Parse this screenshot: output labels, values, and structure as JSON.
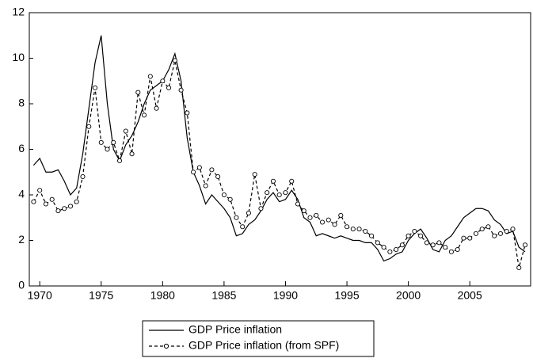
{
  "chart_data": {
    "type": "line",
    "x": [
      1969.5,
      1970,
      1970.5,
      1971,
      1971.5,
      1972,
      1972.5,
      1973,
      1973.5,
      1974,
      1974.5,
      1975,
      1975.5,
      1976,
      1976.5,
      1977,
      1977.5,
      1978,
      1978.5,
      1979,
      1979.5,
      1980,
      1980.5,
      1981,
      1981.5,
      1982,
      1982.5,
      1983,
      1983.5,
      1984,
      1984.5,
      1985,
      1985.5,
      1986,
      1986.5,
      1987,
      1987.5,
      1988,
      1988.5,
      1989,
      1989.5,
      1990,
      1990.5,
      1991,
      1991.5,
      1992,
      1992.5,
      1993,
      1993.5,
      1994,
      1994.5,
      1995,
      1995.5,
      1996,
      1996.5,
      1997,
      1997.5,
      1998,
      1998.5,
      1999,
      1999.5,
      2000,
      2000.5,
      2001,
      2001.5,
      2002,
      2002.5,
      2003,
      2003.5,
      2004,
      2004.5,
      2005,
      2005.5,
      2006,
      2006.5,
      2007,
      2007.5,
      2008,
      2008.5,
      2009,
      2009.5
    ],
    "series": [
      {
        "name": "GDP Price inflation",
        "color": "#000000",
        "dashed": false,
        "markers": false,
        "values": [
          5.3,
          5.6,
          5.0,
          5.0,
          5.1,
          4.6,
          4.0,
          4.3,
          5.8,
          7.8,
          9.8,
          11.0,
          8.0,
          6.0,
          5.5,
          6.2,
          6.6,
          7.2,
          8.0,
          8.6,
          8.8,
          9.0,
          9.5,
          10.2,
          9.0,
          6.5,
          5.0,
          4.4,
          3.6,
          4.0,
          3.7,
          3.4,
          3.0,
          2.2,
          2.3,
          2.7,
          2.9,
          3.3,
          3.8,
          4.1,
          3.7,
          3.8,
          4.2,
          3.8,
          3.0,
          2.8,
          2.2,
          2.3,
          2.2,
          2.1,
          2.2,
          2.1,
          2.0,
          2.0,
          1.9,
          1.9,
          1.6,
          1.1,
          1.2,
          1.4,
          1.5,
          2.0,
          2.3,
          2.5,
          2.1,
          1.6,
          1.5,
          2.0,
          2.2,
          2.6,
          3.0,
          3.2,
          3.4,
          3.4,
          3.3,
          2.9,
          2.7,
          2.3,
          2.4,
          1.7,
          1.5
        ]
      },
      {
        "name": "GDP Price inflation (from SPF)",
        "color": "#000000",
        "dashed": true,
        "markers": true,
        "values": [
          3.7,
          4.2,
          3.6,
          3.8,
          3.3,
          3.4,
          3.5,
          3.7,
          4.8,
          7.0,
          8.7,
          6.3,
          6.0,
          6.3,
          5.5,
          6.8,
          5.8,
          8.5,
          7.5,
          9.2,
          7.8,
          9.0,
          8.7,
          9.9,
          8.6,
          7.6,
          5.0,
          5.2,
          4.4,
          5.1,
          4.8,
          4.0,
          3.8,
          3.0,
          2.6,
          3.2,
          4.9,
          3.4,
          4.1,
          4.6,
          4.0,
          4.1,
          4.6,
          3.6,
          3.3,
          3.0,
          3.1,
          2.8,
          2.9,
          2.7,
          3.1,
          2.6,
          2.5,
          2.5,
          2.4,
          2.2,
          1.9,
          1.7,
          1.5,
          1.6,
          1.8,
          2.2,
          2.4,
          2.2,
          1.9,
          1.8,
          1.9,
          1.7,
          1.5,
          1.6,
          2.1,
          2.1,
          2.3,
          2.5,
          2.6,
          2.2,
          2.3,
          2.4,
          2.5,
          0.8,
          1.8
        ]
      }
    ],
    "xlim": [
      1969.15,
      2009.95
    ],
    "xticks": [
      1970,
      1975,
      1980,
      1985,
      1990,
      1995,
      2000,
      2005
    ],
    "ylim": [
      0,
      12
    ],
    "yticks": [
      0,
      2,
      4,
      6,
      8,
      10,
      12
    ],
    "grid": false
  }
}
